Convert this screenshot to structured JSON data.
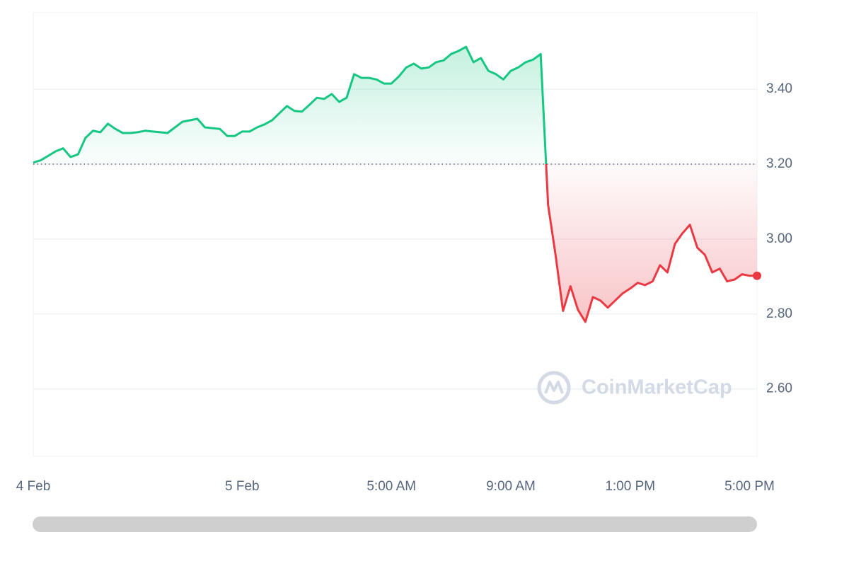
{
  "chart_data": {
    "type": "line",
    "watermark": "CoinMarketCap",
    "categories": [
      "4 Feb",
      null,
      null,
      null,
      null,
      null,
      null,
      null,
      null,
      null,
      null,
      null,
      null,
      null,
      null,
      null,
      null,
      null,
      null,
      null,
      null,
      null,
      null,
      null,
      null,
      null,
      null,
      null,
      "5 Feb",
      null,
      null,
      null,
      null,
      null,
      null,
      null,
      null,
      null,
      null,
      null,
      null,
      null,
      null,
      null,
      null,
      null,
      null,
      null,
      "5:00 AM",
      null,
      null,
      null,
      null,
      null,
      null,
      null,
      null,
      null,
      null,
      null,
      null,
      null,
      null,
      null,
      "9:00 AM",
      null,
      null,
      null,
      null,
      null,
      null,
      null,
      null,
      null,
      null,
      null,
      null,
      null,
      null,
      null,
      "1:00 PM",
      null,
      null,
      null,
      null,
      null,
      null,
      null,
      null,
      null,
      null,
      null,
      null,
      null,
      null,
      null,
      "5:00 PM",
      null
    ],
    "series": [
      {
        "up_color": "#16c784",
        "down_color": "#ea3943",
        "values": [
          3.204,
          3.21,
          3.222,
          3.234,
          3.242,
          3.219,
          3.226,
          3.27,
          3.289,
          3.285,
          3.308,
          3.294,
          3.283,
          3.283,
          3.285,
          3.289,
          3.287,
          3.285,
          3.283,
          3.298,
          3.313,
          3.317,
          3.321,
          3.298,
          3.296,
          3.294,
          3.275,
          3.275,
          3.287,
          3.287,
          3.298,
          3.306,
          3.317,
          3.336,
          3.355,
          3.342,
          3.34,
          3.358,
          3.377,
          3.374,
          3.387,
          3.366,
          3.377,
          3.44,
          3.43,
          3.43,
          3.426,
          3.415,
          3.415,
          3.434,
          3.458,
          3.468,
          3.455,
          3.458,
          3.472,
          3.477,
          3.494,
          3.502,
          3.513,
          3.472,
          3.483,
          3.449,
          3.44,
          3.426,
          3.449,
          3.458,
          3.472,
          3.479,
          3.494,
          3.091,
          2.958,
          2.808,
          2.874,
          2.811,
          2.779,
          2.845,
          2.836,
          2.817,
          2.836,
          2.855,
          2.868,
          2.883,
          2.877,
          2.887,
          2.93,
          2.911,
          2.987,
          3.015,
          3.038,
          2.977,
          2.958,
          2.911,
          2.921,
          2.887,
          2.892,
          2.906,
          2.902,
          2.902
        ]
      }
    ],
    "baseline": 3.2,
    "ylim": [
      2.42,
      3.604
    ],
    "yticks": [
      {
        "value": 2.6,
        "label": "2.60"
      },
      {
        "value": 2.8,
        "label": "2.80"
      },
      {
        "value": 3.0,
        "label": "3.00"
      },
      {
        "value": 3.2,
        "label": "3.20"
      },
      {
        "value": 3.4,
        "label": "3.40"
      }
    ],
    "grid": true
  }
}
